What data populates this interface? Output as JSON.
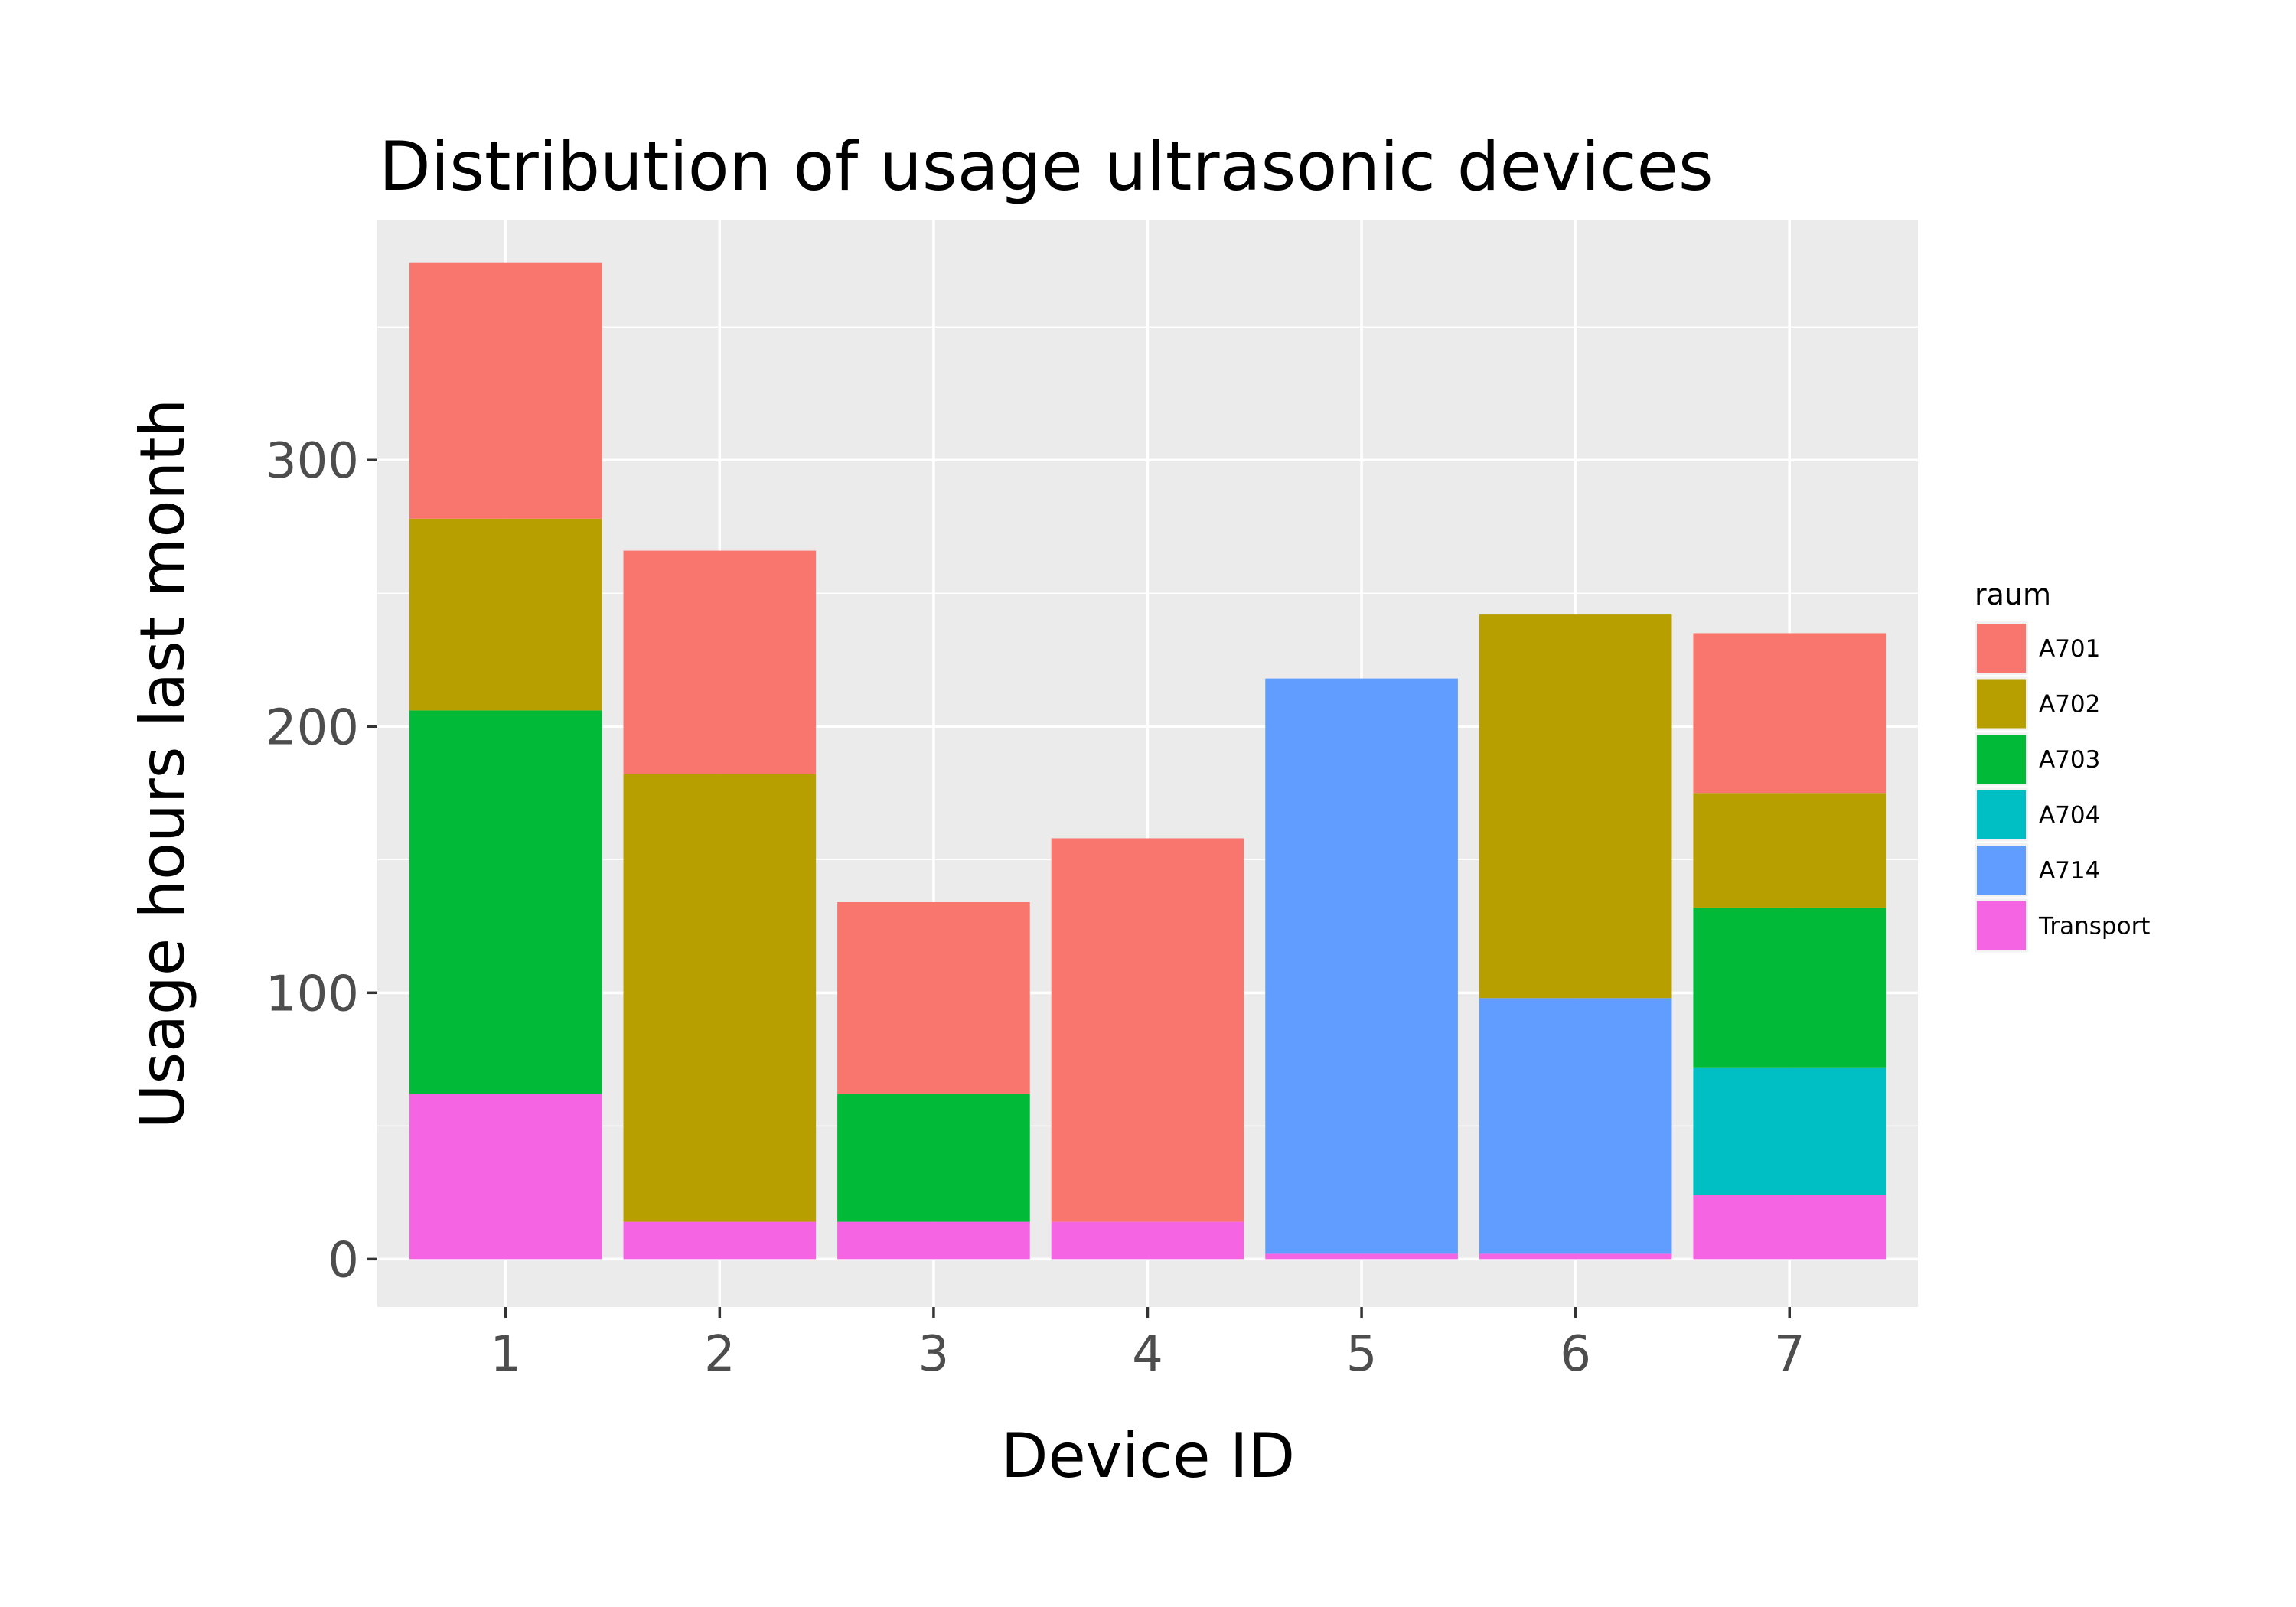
{
  "chart_data": {
    "type": "bar",
    "stacked": true,
    "title": "Distribution of usage ultrasonic devices",
    "xlabel": "Device ID",
    "ylabel": "Usage hours last month",
    "categories": [
      "1",
      "2",
      "3",
      "4",
      "5",
      "6",
      "7"
    ],
    "y_ticks": [
      "0",
      "100",
      "200",
      "300"
    ],
    "ylim": [
      -18,
      390
    ],
    "grid": true,
    "legend": {
      "title": "raum",
      "placement": "right",
      "entries": [
        "A701",
        "A702",
        "A703",
        "A704",
        "A714",
        "Transport"
      ]
    },
    "series": [
      {
        "name": "Transport",
        "color": "#F564E3",
        "values": [
          62,
          14,
          14,
          14,
          2,
          2,
          24
        ]
      },
      {
        "name": "A714",
        "color": "#619CFF",
        "values": [
          0,
          0,
          0,
          0,
          216,
          96,
          0
        ]
      },
      {
        "name": "A704",
        "color": "#00BFC4",
        "values": [
          0,
          0,
          0,
          0,
          0,
          0,
          48
        ]
      },
      {
        "name": "A703",
        "color": "#00BA38",
        "values": [
          144,
          0,
          48,
          0,
          0,
          0,
          60
        ]
      },
      {
        "name": "A702",
        "color": "#B79F00",
        "values": [
          72,
          168,
          0,
          0,
          0,
          144,
          43
        ]
      },
      {
        "name": "A701",
        "color": "#F8766D",
        "values": [
          96,
          84,
          72,
          144,
          0,
          0,
          60
        ]
      }
    ]
  }
}
